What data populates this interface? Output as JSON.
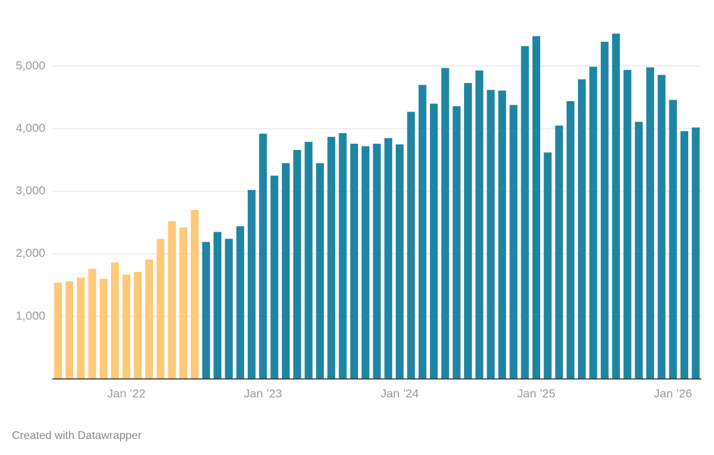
{
  "chart_data": {
    "type": "bar",
    "categories": [
      null,
      null,
      null,
      null,
      null,
      null,
      "Jan ’22",
      null,
      null,
      null,
      null,
      null,
      null,
      null,
      null,
      null,
      null,
      null,
      "Jan ’23",
      null,
      null,
      null,
      null,
      null,
      null,
      null,
      null,
      null,
      null,
      null,
      "Jan ’24",
      null,
      null,
      null,
      null,
      null,
      null,
      null,
      null,
      null,
      null,
      null,
      "Jan ’25",
      null,
      null,
      null,
      null,
      null,
      null,
      null,
      null,
      null,
      null,
      null,
      "Jan ’26",
      null,
      null
    ],
    "values": [
      1540,
      1560,
      1620,
      1760,
      1600,
      1860,
      1670,
      1710,
      1910,
      2240,
      2520,
      2420,
      2700,
      2190,
      2350,
      2240,
      2440,
      3020,
      3920,
      3250,
      3450,
      3660,
      3790,
      3450,
      3870,
      3930,
      3760,
      3720,
      3760,
      3850,
      3750,
      4270,
      4700,
      4400,
      4970,
      4360,
      4730,
      4930,
      4620,
      4610,
      4380,
      5320,
      5480,
      3620,
      4050,
      4440,
      4790,
      4990,
      5390,
      5520,
      4940,
      4110,
      4980,
      4860,
      4460,
      3960,
      4020
    ],
    "bar_colors": [
      "#fec978",
      "#fec978",
      "#fec978",
      "#fec978",
      "#fec978",
      "#fec978",
      "#fec978",
      "#fec978",
      "#fec978",
      "#fec978",
      "#fec978",
      "#fec978",
      "#fec978",
      "#1f85a3",
      "#1f85a3",
      "#1f85a3",
      "#1f85a3",
      "#1f85a3",
      "#1f85a3",
      "#1f85a3",
      "#1f85a3",
      "#1f85a3",
      "#1f85a3",
      "#1f85a3",
      "#1f85a3",
      "#1f85a3",
      "#1f85a3",
      "#1f85a3",
      "#1f85a3",
      "#1f85a3",
      "#1f85a3",
      "#1f85a3",
      "#1f85a3",
      "#1f85a3",
      "#1f85a3",
      "#1f85a3",
      "#1f85a3",
      "#1f85a3",
      "#1f85a3",
      "#1f85a3",
      "#1f85a3",
      "#1f85a3",
      "#1f85a3",
      "#1f85a3",
      "#1f85a3",
      "#1f85a3",
      "#1f85a3",
      "#1f85a3",
      "#1f85a3",
      "#1f85a3",
      "#1f85a3",
      "#1f85a3",
      "#1f85a3",
      "#1f85a3",
      "#1f85a3",
      "#1f85a3",
      "#1f85a3"
    ],
    "ylim": [
      0,
      5600
    ],
    "yticks": [
      {
        "value": 1000,
        "label": "1,000"
      },
      {
        "value": 2000,
        "label": "2,000"
      },
      {
        "value": 3000,
        "label": "3,000"
      },
      {
        "value": 4000,
        "label": "4,000"
      },
      {
        "value": 5000,
        "label": "5,000"
      }
    ],
    "grid": true
  },
  "footer": "Created with Datawrapper"
}
